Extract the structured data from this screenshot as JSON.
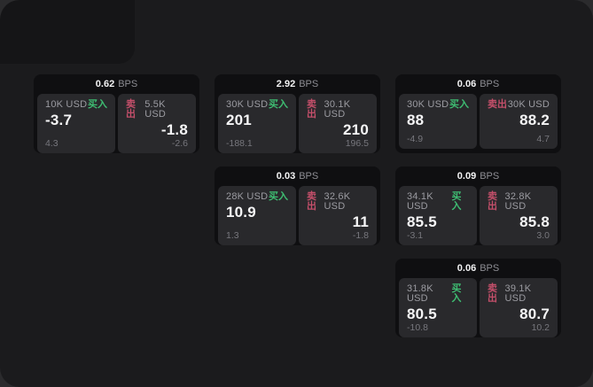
{
  "labels": {
    "buy": "买入",
    "sell": "卖出",
    "bps_unit": "BPS"
  },
  "colors": {
    "outer_bg": "#2b2b2d",
    "panel_bg": "#1b1b1d",
    "card_bg": "#0f0f11",
    "tile_bg": "#29292c",
    "buy_green": "#3ebd72",
    "sell_rose": "#c44f6a",
    "text_primary": "#f5f5f6",
    "text_secondary": "#9b9ba1",
    "text_dim": "#77777d"
  },
  "cards": [
    {
      "bps": "0.62",
      "buy": {
        "size": "10K USD",
        "value": "-3.7",
        "delta": "4.3"
      },
      "sell": {
        "size": "5.5K USD",
        "value": "-1.8",
        "delta": "-2.6"
      }
    },
    {
      "bps": "2.92",
      "buy": {
        "size": "30K USD",
        "value": "201",
        "delta": "-188.1"
      },
      "sell": {
        "size": "30.1K USD",
        "value": "210",
        "delta": "196.5"
      }
    },
    {
      "bps": "0.06",
      "buy": {
        "size": "30K USD",
        "value": "88",
        "delta": "-4.9"
      },
      "sell": {
        "size": "30K USD",
        "value": "88.2",
        "delta": "4.7"
      }
    },
    {
      "bps": "0.03",
      "buy": {
        "size": "28K USD",
        "value": "10.9",
        "delta": "1.3"
      },
      "sell": {
        "size": "32.6K USD",
        "value": "11",
        "delta": "-1.8"
      }
    },
    {
      "bps": "0.09",
      "buy": {
        "size": "34.1K USD",
        "value": "85.5",
        "delta": "-3.1"
      },
      "sell": {
        "size": "32.8K USD",
        "value": "85.8",
        "delta": "3.0"
      }
    },
    {
      "bps": "0.06",
      "buy": {
        "size": "31.8K USD",
        "value": "80.5",
        "delta": "-10.8"
      },
      "sell": {
        "size": "39.1K USD",
        "value": "80.7",
        "delta": "10.2"
      }
    }
  ]
}
